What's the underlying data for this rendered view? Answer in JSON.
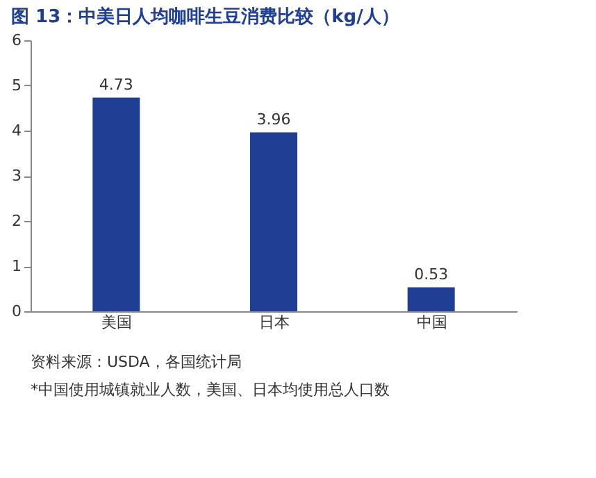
{
  "chart_data": {
    "type": "bar",
    "title": "图 13：中美日人均咖啡生豆消费比较（kg/人）",
    "categories": [
      "美国",
      "日本",
      "中国"
    ],
    "values": [
      4.73,
      3.96,
      0.53
    ],
    "color": "#1f3f94",
    "ylim": [
      0,
      6
    ],
    "yticks": [
      0,
      1,
      2,
      3,
      4,
      5,
      6
    ],
    "grid": false,
    "data_labels": true,
    "annotations": [
      "资料来源：USDA，各国统计局",
      "*中国使用城镇就业人数，美国、日本均使用总人口数"
    ]
  }
}
